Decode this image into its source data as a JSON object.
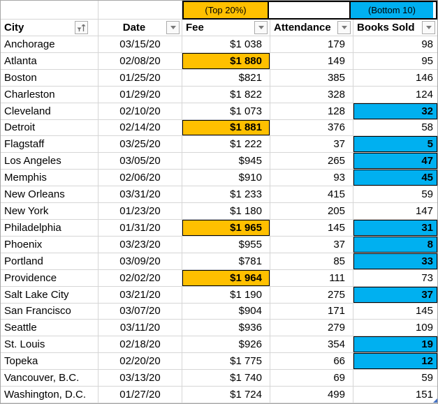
{
  "banner": {
    "top_label": "(Top 20%)",
    "bottom_label": "(Bottom 10)"
  },
  "columns": {
    "city": {
      "label": "City",
      "filter_icon": "sort-ascending-filter-icon"
    },
    "date": {
      "label": "Date",
      "filter_icon": "filter-dropdown-icon"
    },
    "fee": {
      "label": "Fee",
      "filter_icon": "filter-dropdown-icon"
    },
    "attendance": {
      "label": "Attendance",
      "filter_icon": "filter-dropdown-icon"
    },
    "books_sold": {
      "label": "Books Sold",
      "filter_icon": "filter-dropdown-icon"
    }
  },
  "colors": {
    "top_highlight_orange": "#FFC000",
    "bottom_highlight_cyan": "#00B0F0",
    "gridline": "#d6d6d6",
    "fill_handle_blue": "#4472c4"
  },
  "rows": [
    {
      "city": "Anchorage",
      "date": "03/15/20",
      "fee": "$1 038",
      "attendance": "179",
      "books_sold": "98",
      "fee_highlight": false,
      "books_highlight": false
    },
    {
      "city": "Atlanta",
      "date": "02/08/20",
      "fee": "$1 880",
      "attendance": "149",
      "books_sold": "95",
      "fee_highlight": true,
      "books_highlight": false
    },
    {
      "city": "Boston",
      "date": "01/25/20",
      "fee": "$821",
      "attendance": "385",
      "books_sold": "146",
      "fee_highlight": false,
      "books_highlight": false
    },
    {
      "city": "Charleston",
      "date": "01/29/20",
      "fee": "$1 822",
      "attendance": "328",
      "books_sold": "124",
      "fee_highlight": false,
      "books_highlight": false
    },
    {
      "city": "Cleveland",
      "date": "02/10/20",
      "fee": "$1 073",
      "attendance": "128",
      "books_sold": "32",
      "fee_highlight": false,
      "books_highlight": true
    },
    {
      "city": "Detroit",
      "date": "02/14/20",
      "fee": "$1 881",
      "attendance": "376",
      "books_sold": "58",
      "fee_highlight": true,
      "books_highlight": false
    },
    {
      "city": "Flagstaff",
      "date": "03/25/20",
      "fee": "$1 222",
      "attendance": "37",
      "books_sold": "5",
      "fee_highlight": false,
      "books_highlight": true
    },
    {
      "city": "Los Angeles",
      "date": "03/05/20",
      "fee": "$945",
      "attendance": "265",
      "books_sold": "47",
      "fee_highlight": false,
      "books_highlight": true
    },
    {
      "city": "Memphis",
      "date": "02/06/20",
      "fee": "$910",
      "attendance": "93",
      "books_sold": "45",
      "fee_highlight": false,
      "books_highlight": true
    },
    {
      "city": "New Orleans",
      "date": "03/31/20",
      "fee": "$1 233",
      "attendance": "415",
      "books_sold": "59",
      "fee_highlight": false,
      "books_highlight": false
    },
    {
      "city": "New York",
      "date": "01/23/20",
      "fee": "$1 180",
      "attendance": "205",
      "books_sold": "147",
      "fee_highlight": false,
      "books_highlight": false
    },
    {
      "city": "Philadelphia",
      "date": "01/31/20",
      "fee": "$1 965",
      "attendance": "145",
      "books_sold": "31",
      "fee_highlight": true,
      "books_highlight": true
    },
    {
      "city": "Phoenix",
      "date": "03/23/20",
      "fee": "$955",
      "attendance": "37",
      "books_sold": "8",
      "fee_highlight": false,
      "books_highlight": true
    },
    {
      "city": "Portland",
      "date": "03/09/20",
      "fee": "$781",
      "attendance": "85",
      "books_sold": "33",
      "fee_highlight": false,
      "books_highlight": true
    },
    {
      "city": "Providence",
      "date": "02/02/20",
      "fee": "$1 964",
      "attendance": "111",
      "books_sold": "73",
      "fee_highlight": true,
      "books_highlight": false
    },
    {
      "city": "Salt Lake City",
      "date": "03/21/20",
      "fee": "$1 190",
      "attendance": "275",
      "books_sold": "37",
      "fee_highlight": false,
      "books_highlight": true
    },
    {
      "city": "San Francisco",
      "date": "03/07/20",
      "fee": "$904",
      "attendance": "171",
      "books_sold": "145",
      "fee_highlight": false,
      "books_highlight": false
    },
    {
      "city": "Seattle",
      "date": "03/11/20",
      "fee": "$936",
      "attendance": "279",
      "books_sold": "109",
      "fee_highlight": false,
      "books_highlight": false
    },
    {
      "city": "St. Louis",
      "date": "02/18/20",
      "fee": "$926",
      "attendance": "354",
      "books_sold": "19",
      "fee_highlight": false,
      "books_highlight": true
    },
    {
      "city": "Topeka",
      "date": "02/20/20",
      "fee": "$1 775",
      "attendance": "66",
      "books_sold": "12",
      "fee_highlight": false,
      "books_highlight": true
    },
    {
      "city": "Vancouver, B.C.",
      "date": "03/13/20",
      "fee": "$1 740",
      "attendance": "69",
      "books_sold": "59",
      "fee_highlight": false,
      "books_highlight": false
    },
    {
      "city": "Washington, D.C.",
      "date": "01/27/20",
      "fee": "$1 724",
      "attendance": "499",
      "books_sold": "151",
      "fee_highlight": false,
      "books_highlight": false
    }
  ]
}
